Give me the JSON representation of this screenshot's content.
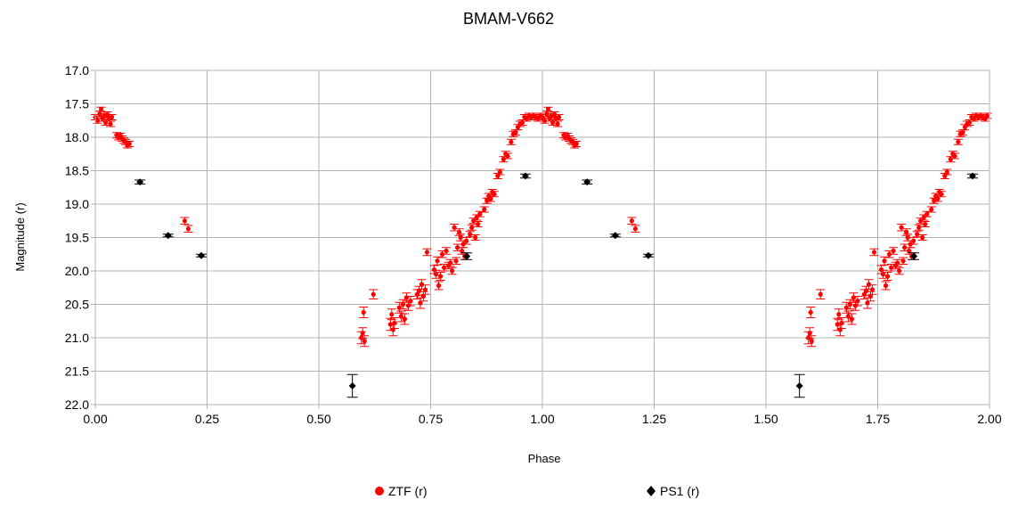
{
  "chart_data": {
    "type": "scatter",
    "title": "BMAM-V662",
    "xlabel": "Phase",
    "ylabel": "Magnitude (r)",
    "xlim": [
      0,
      2
    ],
    "ylim": [
      17,
      22
    ],
    "y_inverted": true,
    "x_ticks": [
      "0.00",
      "0.25",
      "0.50",
      "0.75",
      "1.00",
      "1.25",
      "1.50",
      "1.75",
      "2.00"
    ],
    "y_ticks": [
      "17.0",
      "17.5",
      "18.0",
      "18.5",
      "19.0",
      "19.5",
      "20.0",
      "20.5",
      "21.0",
      "21.5",
      "22.0"
    ],
    "grid": true,
    "legend_position": "bottom",
    "colors": {
      "ztf": "#ff0000",
      "ps1": "#000000",
      "grid": "#b3b3b3"
    },
    "series": [
      {
        "name": "ZTF (r)",
        "marker": "circle",
        "color": "#ff0000",
        "points": [
          [
            0.0,
            17.7,
            0.04
          ],
          [
            0.005,
            17.75,
            0.04
          ],
          [
            0.01,
            17.65,
            0.04
          ],
          [
            0.013,
            17.58,
            0.03
          ],
          [
            0.016,
            17.72,
            0.04
          ],
          [
            0.02,
            17.68,
            0.04
          ],
          [
            0.023,
            17.78,
            0.04
          ],
          [
            0.027,
            17.66,
            0.04
          ],
          [
            0.03,
            17.72,
            0.04
          ],
          [
            0.034,
            17.8,
            0.04
          ],
          [
            0.037,
            17.7,
            0.04
          ],
          [
            0.048,
            17.97,
            0.04
          ],
          [
            0.052,
            18.0,
            0.04
          ],
          [
            0.056,
            17.98,
            0.04
          ],
          [
            0.06,
            18.02,
            0.04
          ],
          [
            0.064,
            18.05,
            0.04
          ],
          [
            0.068,
            18.07,
            0.04
          ],
          [
            0.072,
            18.12,
            0.04
          ],
          [
            0.076,
            18.1,
            0.04
          ],
          [
            0.2,
            19.25,
            0.05
          ],
          [
            0.208,
            19.37,
            0.05
          ],
          [
            0.595,
            21.0,
            0.09
          ],
          [
            0.598,
            20.93,
            0.08
          ],
          [
            0.6,
            20.62,
            0.08
          ],
          [
            0.602,
            21.05,
            0.08
          ],
          [
            0.622,
            20.35,
            0.07
          ],
          [
            0.66,
            20.8,
            0.09
          ],
          [
            0.663,
            20.65,
            0.08
          ],
          [
            0.666,
            20.88,
            0.09
          ],
          [
            0.669,
            20.78,
            0.08
          ],
          [
            0.68,
            20.55,
            0.08
          ],
          [
            0.684,
            20.68,
            0.08
          ],
          [
            0.688,
            20.5,
            0.07
          ],
          [
            0.692,
            20.72,
            0.08
          ],
          [
            0.696,
            20.4,
            0.07
          ],
          [
            0.7,
            20.52,
            0.07
          ],
          [
            0.705,
            20.45,
            0.07
          ],
          [
            0.72,
            20.35,
            0.07
          ],
          [
            0.724,
            20.3,
            0.07
          ],
          [
            0.727,
            20.48,
            0.08
          ],
          [
            0.73,
            20.2,
            0.07
          ],
          [
            0.734,
            20.38,
            0.07
          ],
          [
            0.738,
            20.28,
            0.07
          ],
          [
            0.742,
            19.72,
            0.05
          ],
          [
            0.758,
            19.98,
            0.06
          ],
          [
            0.762,
            20.05,
            0.06
          ],
          [
            0.765,
            19.85,
            0.06
          ],
          [
            0.768,
            20.22,
            0.06
          ],
          [
            0.772,
            20.08,
            0.06
          ],
          [
            0.776,
            19.75,
            0.05
          ],
          [
            0.78,
            19.95,
            0.05
          ],
          [
            0.785,
            19.7,
            0.05
          ],
          [
            0.79,
            19.92,
            0.05
          ],
          [
            0.794,
            19.88,
            0.05
          ],
          [
            0.798,
            20.0,
            0.05
          ],
          [
            0.803,
            19.35,
            0.05
          ],
          [
            0.807,
            19.85,
            0.05
          ],
          [
            0.81,
            19.65,
            0.05
          ],
          [
            0.814,
            19.42,
            0.05
          ],
          [
            0.817,
            19.5,
            0.05
          ],
          [
            0.82,
            19.7,
            0.05
          ],
          [
            0.823,
            19.6,
            0.05
          ],
          [
            0.826,
            19.78,
            0.05
          ],
          [
            0.83,
            19.55,
            0.05
          ],
          [
            0.838,
            19.45,
            0.04
          ],
          [
            0.842,
            19.35,
            0.04
          ],
          [
            0.846,
            19.25,
            0.04
          ],
          [
            0.85,
            19.5,
            0.04
          ],
          [
            0.853,
            19.2,
            0.04
          ],
          [
            0.856,
            19.3,
            0.04
          ],
          [
            0.86,
            19.15,
            0.04
          ],
          [
            0.87,
            19.08,
            0.04
          ],
          [
            0.876,
            18.95,
            0.04
          ],
          [
            0.88,
            18.88,
            0.04
          ],
          [
            0.884,
            18.92,
            0.04
          ],
          [
            0.888,
            18.82,
            0.04
          ],
          [
            0.892,
            18.85,
            0.04
          ],
          [
            0.9,
            18.58,
            0.04
          ],
          [
            0.905,
            18.52,
            0.04
          ],
          [
            0.913,
            18.33,
            0.04
          ],
          [
            0.918,
            18.25,
            0.04
          ],
          [
            0.922,
            18.28,
            0.04
          ],
          [
            0.93,
            18.07,
            0.04
          ],
          [
            0.935,
            17.95,
            0.04
          ],
          [
            0.94,
            17.93,
            0.04
          ],
          [
            0.945,
            17.85,
            0.04
          ],
          [
            0.95,
            17.8,
            0.04
          ],
          [
            0.955,
            17.78,
            0.04
          ],
          [
            0.96,
            17.7,
            0.04
          ],
          [
            0.965,
            17.72,
            0.04
          ],
          [
            0.97,
            17.68,
            0.04
          ],
          [
            0.975,
            17.7,
            0.04
          ],
          [
            0.98,
            17.68,
            0.04
          ],
          [
            0.985,
            17.7,
            0.04
          ],
          [
            0.99,
            17.72,
            0.04
          ],
          [
            0.995,
            17.68,
            0.04
          ]
        ]
      },
      {
        "name": "PS1 (r)",
        "marker": "diamond",
        "color": "#000000",
        "points": [
          [
            0.1,
            18.67,
            0.03
          ],
          [
            0.163,
            19.47,
            0.02
          ],
          [
            0.237,
            19.77,
            0.02
          ],
          [
            0.575,
            21.72,
            0.17
          ],
          [
            0.831,
            19.78,
            0.05
          ],
          [
            0.962,
            18.58,
            0.03
          ]
        ]
      }
    ]
  }
}
